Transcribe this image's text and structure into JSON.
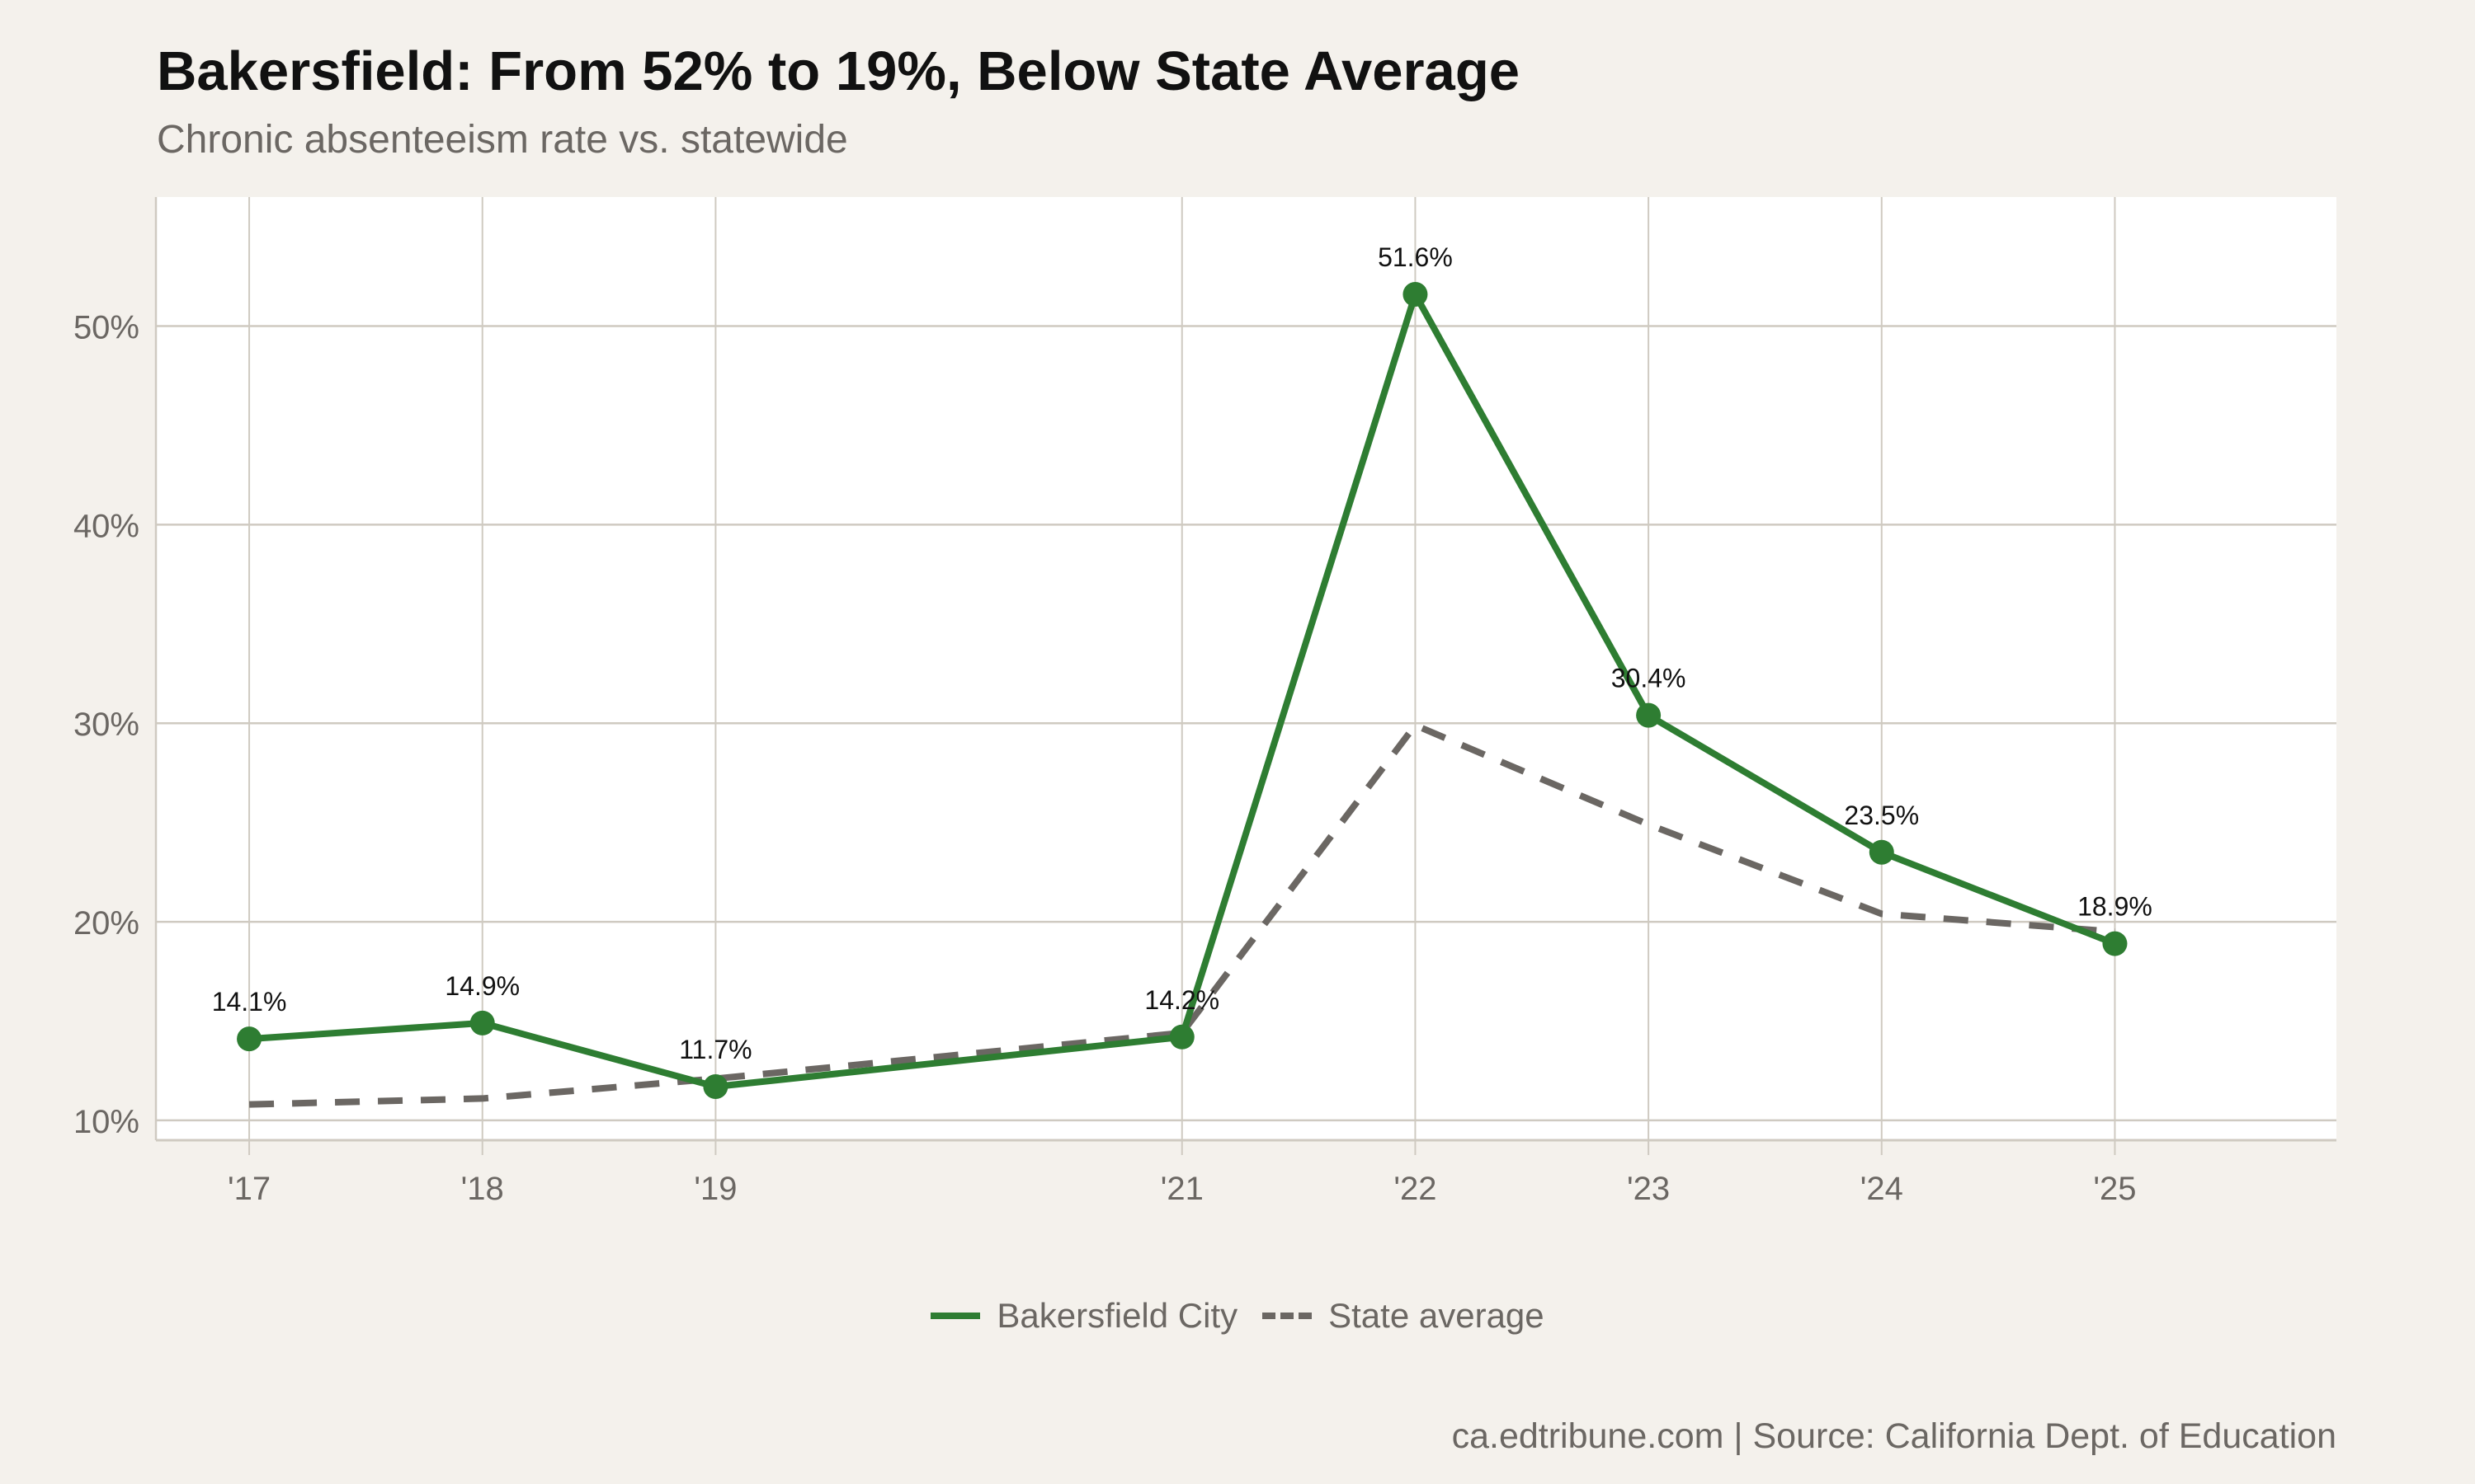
{
  "title": "Bakersfield: From 52% to 19%, Below State Average",
  "subtitle": "Chronic absenteeism rate vs. statewide",
  "caption": "ca.edtribune.com | Source: California Dept. of Education",
  "chart_data": {
    "type": "line",
    "title": "Bakersfield: From 52% to 19%, Below State Average",
    "subtitle": "Chronic absenteeism rate vs. statewide",
    "x": [
      2017,
      2018,
      2019,
      2021,
      2022,
      2023,
      2024,
      2025
    ],
    "x_tick_labels": [
      "'17",
      "'18",
      "'19",
      "'21",
      "'22",
      "'23",
      "'24",
      "'25"
    ],
    "y_ticks": [
      10,
      20,
      30,
      40,
      50
    ],
    "y_tick_labels": [
      "10%",
      "20%",
      "30%",
      "40%",
      "50%"
    ],
    "xlim": [
      2016.6,
      2025.95
    ],
    "ylim": [
      9,
      56.5
    ],
    "grid": true,
    "legend_position": "bottom",
    "series": [
      {
        "name": "Bakersfield City",
        "values": [
          14.1,
          14.9,
          11.7,
          14.2,
          51.6,
          30.4,
          23.5,
          18.9
        ],
        "labels": [
          "14.1%",
          "14.9%",
          "11.7%",
          "14.2%",
          "51.6%",
          "30.4%",
          "23.5%",
          "18.9%"
        ],
        "color": "#2e7d32",
        "style": "solid",
        "markers": true
      },
      {
        "name": "State average",
        "values": [
          10.8,
          11.1,
          12.1,
          14.4,
          29.9,
          24.9,
          20.4,
          19.5
        ],
        "color": "#6b6763",
        "style": "dashed",
        "markers": false
      }
    ]
  }
}
